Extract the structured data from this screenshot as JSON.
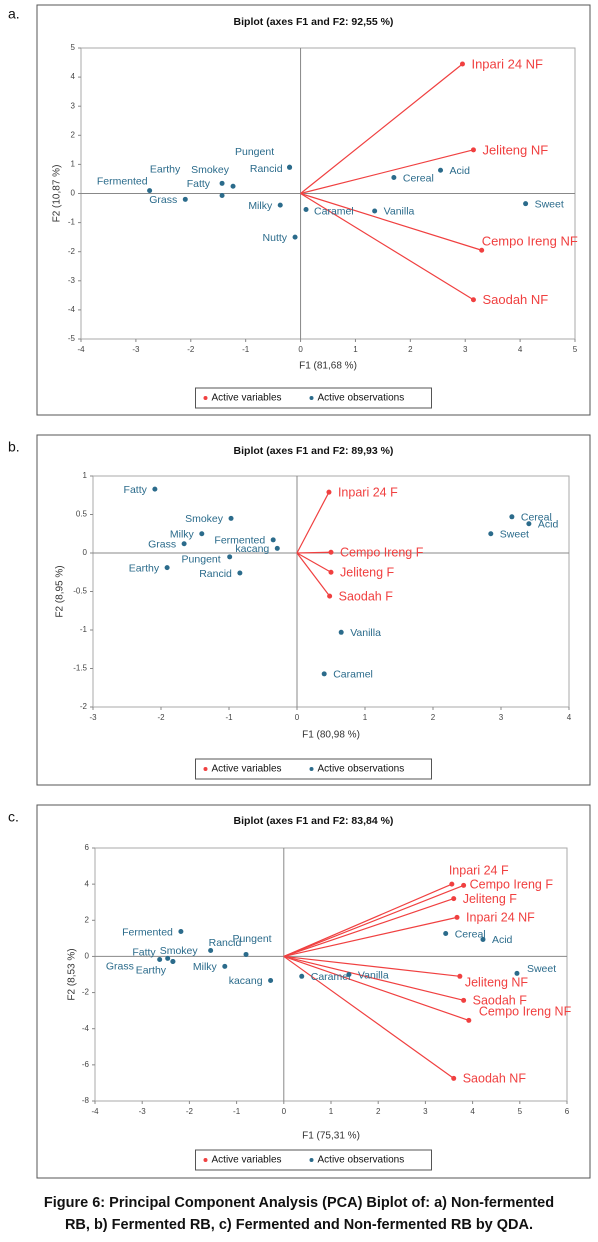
{
  "chart_data": [
    {
      "panel": "a.",
      "type": "biplot",
      "title": "Biplot (axes F1 and F2: 92,55 %)",
      "x_label": "F1 (81,68 %)",
      "y_label": "F2 (10,87 %)",
      "xlim": [
        -4,
        5
      ],
      "ylim": [
        -5,
        5
      ],
      "xticks": [
        -4,
        -3,
        -2,
        -1,
        0,
        1,
        2,
        3,
        4,
        5
      ],
      "yticks": [
        -5,
        -4,
        -3,
        -2,
        -1,
        0,
        1,
        2,
        3,
        4,
        5
      ],
      "series": [
        {
          "name": "Active variables",
          "color": "#f04040",
          "labels": [
            "Inpari 24 NF",
            "Jeliteng NF",
            "Cempo Ireng NF",
            "Saodah NF"
          ],
          "x": [
            2.95,
            3.15,
            3.3,
            3.15
          ],
          "values": [
            4.45,
            1.5,
            -1.95,
            -3.65
          ]
        },
        {
          "name": "Active observations",
          "color": "#2b6b8b",
          "labels": [
            "Fermented",
            "Grass",
            "Smokey",
            "Fatty",
            "Earthy",
            "Pungent",
            "Rancid",
            "Milky",
            "Caramel",
            "Nutty",
            "Vanilla",
            "Cereal",
            "Acid",
            "Sweet"
          ],
          "x": [
            -2.75,
            -2.1,
            -1.43,
            -1.23,
            -1.43,
            -0.2,
            -0.2,
            -0.37,
            0.1,
            -0.1,
            1.35,
            1.7,
            2.55,
            4.1
          ],
          "values": [
            0.1,
            -0.2,
            0.35,
            0.25,
            -0.07,
            0.9,
            0.9,
            -0.4,
            -0.55,
            -1.5,
            -0.6,
            0.55,
            0.8,
            -0.35
          ]
        }
      ]
    },
    {
      "panel": "b.",
      "type": "biplot",
      "title": "Biplot (axes F1 and F2: 89,93 %)",
      "x_label": "F1 (80,98 %)",
      "y_label": "F2 (8,95 %)",
      "xlim": [
        -3,
        4
      ],
      "ylim": [
        -2,
        1
      ],
      "xticks": [
        -3,
        -2,
        -1,
        0,
        1,
        2,
        3,
        4
      ],
      "yticks": [
        -2,
        -1.5,
        -1,
        -0.5,
        0,
        0.5,
        1
      ],
      "series": [
        {
          "name": "Active variables",
          "color": "#f04040",
          "labels": [
            "Inpari 24 F",
            "Cempo Ireng F",
            "Jeliteng F",
            "Saodah F"
          ],
          "x": [
            0.47,
            0.5,
            0.5,
            0.48
          ],
          "values": [
            0.79,
            0.01,
            -0.25,
            -0.56
          ]
        },
        {
          "name": "Active observations",
          "color": "#2b6b8b",
          "labels": [
            "Fatty",
            "Smokey",
            "Milky",
            "Grass",
            "Fermented",
            "kacang",
            "Pungent",
            "Earthy",
            "Rancid",
            "Cereal",
            "Acid",
            "Sweet",
            "Vanilla",
            "Caramel"
          ],
          "x": [
            -2.09,
            -0.97,
            -1.4,
            -1.66,
            -0.35,
            -0.29,
            -0.99,
            -1.91,
            -0.84,
            3.16,
            3.41,
            2.85,
            0.65,
            0.4
          ],
          "values": [
            0.83,
            0.45,
            0.25,
            0.12,
            0.17,
            0.06,
            -0.05,
            -0.19,
            -0.26,
            0.47,
            0.38,
            0.25,
            -1.03,
            -1.57
          ]
        }
      ]
    },
    {
      "panel": "c.",
      "type": "biplot",
      "title": "Biplot (axes F1 and F2: 83,84 %)",
      "x_label": "F1 (75,31 %)",
      "y_label": "F2 (8,53 %)",
      "xlim": [
        -4,
        6
      ],
      "ylim": [
        -8,
        6
      ],
      "xticks": [
        -4,
        -3,
        -2,
        -1,
        0,
        1,
        2,
        3,
        4,
        5,
        6
      ],
      "yticks": [
        -8,
        -6,
        -4,
        -2,
        0,
        2,
        4,
        6
      ],
      "series": [
        {
          "name": "Active variables",
          "color": "#f04040",
          "labels": [
            "Inpari 24 F",
            "Cempo Ireng F",
            "Jeliteng F",
            "Inpari 24 NF",
            "Jeliteng NF",
            "Saodah F",
            "Cempo Ireng NF",
            "Saodah NF"
          ],
          "x": [
            3.56,
            3.81,
            3.6,
            3.67,
            3.73,
            3.81,
            3.92,
            3.6
          ],
          "values": [
            4.0,
            3.93,
            3.2,
            2.16,
            -1.1,
            -2.43,
            -3.54,
            -6.75
          ]
        },
        {
          "name": "Active observations",
          "color": "#2b6b8b",
          "labels": [
            "Fermented",
            "Fatty",
            "Smokey",
            "Grass",
            "Earthy",
            "Rancid",
            "Pungent",
            "Milky",
            "kacang",
            "Caramel",
            "Vanilla",
            "Cereal",
            "Acid",
            "Sweet"
          ],
          "x": [
            -2.18,
            -2.63,
            -2.46,
            -2.35,
            -2.35,
            -1.55,
            -0.8,
            -1.25,
            -0.28,
            0.38,
            1.38,
            3.43,
            4.22,
            4.94
          ],
          "values": [
            1.38,
            -0.17,
            -0.11,
            -0.28,
            -0.28,
            0.33,
            0.11,
            -0.55,
            -1.33,
            -1.1,
            -1.0,
            1.27,
            0.94,
            -0.94
          ]
        }
      ]
    }
  ],
  "caption": [
    "Figure 6: Principal Component Analysis (PCA) Biplot of: a) Non-fermented",
    "RB, b) Fermented RB, c) Fermented and Non-fermented RB by QDA."
  ]
}
